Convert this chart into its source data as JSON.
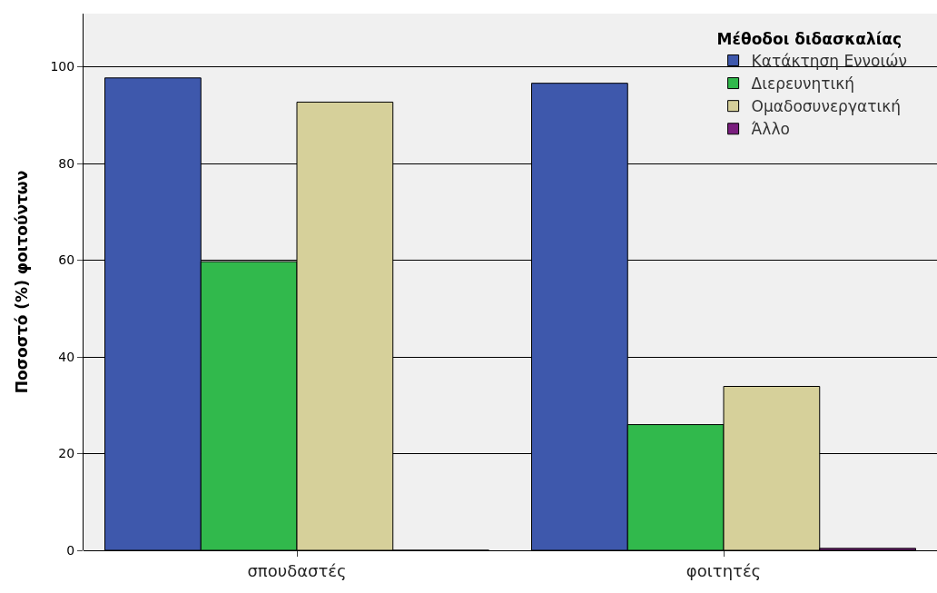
{
  "chart_data": {
    "type": "bar",
    "ylabel": "Ποσοστό (%) φοιτούντων",
    "legend_title": "Μέθοδοι διδασκαλίας",
    "categories": [
      "σπουδαστές",
      "φοιτητές"
    ],
    "series": [
      {
        "name": "Κατάκτηση Εννοιών",
        "color": "#3e58ac",
        "values": [
          97.7,
          96.6
        ]
      },
      {
        "name": "Διερευνητική",
        "color": "#31b94c",
        "values": [
          59.7,
          26
        ]
      },
      {
        "name": "Ομαδοσυνεργατική",
        "color": "#d6d09a",
        "values": [
          92.7,
          33.9
        ]
      },
      {
        "name": "Άλλο",
        "color": "#7a1e7e",
        "values": [
          0,
          0.4
        ]
      }
    ],
    "ylim": [
      0,
      111
    ],
    "yticks": [
      0,
      20,
      40,
      60,
      80,
      100
    ],
    "grid": "y",
    "legend": "top right"
  }
}
